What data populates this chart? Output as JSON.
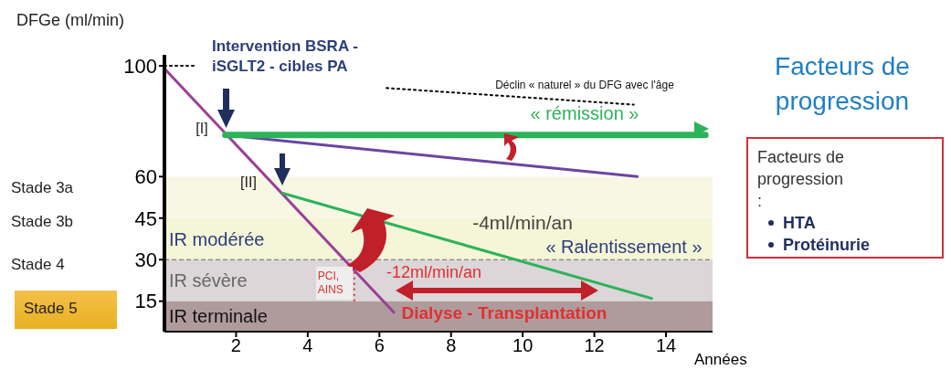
{
  "chart_data": {
    "type": "line",
    "title": "Facteurs de progression",
    "xlabel": "Années",
    "ylabel": "DFGe (ml/min)",
    "xlim": [
      0,
      15.3
    ],
    "xticks": [
      2,
      4,
      6,
      8,
      10,
      12,
      14
    ],
    "ylim": [
      4,
      104
    ],
    "yticks": [
      15,
      30,
      45,
      60,
      100
    ],
    "series": [
      {
        "color": "#9c3f96",
        "x": [
          0,
          6.4
        ],
        "values": [
          99,
          11
        ]
      },
      {
        "color": "#6c44a0",
        "x": [
          1.7,
          13.2
        ],
        "values": [
          75,
          60
        ]
      },
      {
        "color": "#2bb35a",
        "x": [
          1.7,
          15.1
        ],
        "values": [
          75,
          75
        ]
      },
      {
        "color": "#2bb35a",
        "x": [
          3.3,
          13.6
        ],
        "values": [
          54,
          16
        ]
      },
      {
        "color": "#000000",
        "line_style": "dotted",
        "x": [
          0,
          0.9,
          3,
          6.2,
          13.1
        ],
        "values": [
          100,
          100,
          null,
          92,
          86
        ]
      }
    ],
    "bands": [
      {
        "axis": "y",
        "from": 45,
        "to": 60,
        "color": "#f7f7e4"
      },
      {
        "axis": "y",
        "from": 30,
        "to": 45,
        "label": "IR modérée",
        "color": "#f5f5d8"
      },
      {
        "axis": "y",
        "from": 15,
        "to": 30,
        "label": "IR sévère",
        "color": "#dcd6d8"
      },
      {
        "axis": "y",
        "from": 4,
        "to": 15,
        "label": "IR terminale",
        "color": "#b09b9c"
      }
    ],
    "ref_lines": [
      {
        "axis": "y",
        "value": 30,
        "color": "#666666",
        "line_style": "dashed"
      },
      {
        "axis": "x",
        "value": 5.3,
        "label": "PCI, AINS",
        "color": "#e03030",
        "line_style": "dotted"
      }
    ],
    "annotations": [
      "Intervention BSRA - iSGLT2 - cibles PA",
      "[I]",
      "[II]",
      "Déclin « naturel » du DFG avec l'âge",
      "« rémission »",
      "-4ml/min/an",
      "« Ralentissement »",
      "-12ml/min/an",
      "Dialyse - Transplantation",
      "Stade 3a",
      "Stade 3b",
      "Stade 4",
      "Stade 5",
      "Facteurs de progression :",
      "HTA",
      "Protéinurie"
    ]
  }
}
